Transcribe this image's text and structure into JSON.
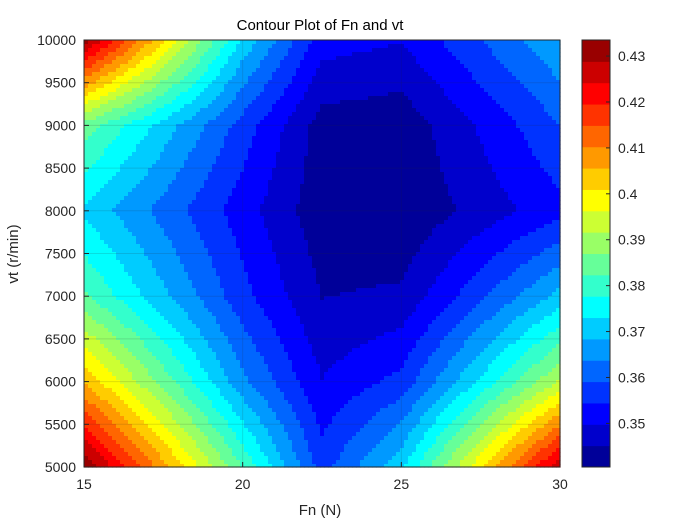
{
  "chart_data": {
    "type": "contour",
    "title": "Contour Plot of Fn and vt",
    "xlabel": "Fn (N)",
    "ylabel": "vt (r/min)",
    "xlim": [
      15,
      30
    ],
    "ylim": [
      5000,
      10000
    ],
    "xticks": [
      15,
      20,
      25,
      30
    ],
    "yticks": [
      5000,
      5500,
      6000,
      6500,
      7000,
      7500,
      8000,
      8500,
      9000,
      9500,
      10000
    ],
    "grid": true,
    "colormap": "jet",
    "colorbar": {
      "location": "right",
      "range": [
        0.3405,
        0.4335
      ],
      "ticks": [
        0.35,
        0.36,
        0.37,
        0.38,
        0.39,
        0.4,
        0.41,
        0.42,
        0.43
      ]
    },
    "levels": 20,
    "z_samples": {
      "x": [
        15,
        20,
        22.5,
        25,
        30
      ],
      "y": [
        5000,
        6000,
        7000,
        8000,
        9000,
        10000
      ],
      "z": [
        [
          0.433,
          0.382,
          0.357,
          0.372,
          0.428
        ],
        [
          0.405,
          0.365,
          0.35,
          0.356,
          0.392
        ],
        [
          0.383,
          0.356,
          0.345,
          0.346,
          0.37
        ],
        [
          0.372,
          0.352,
          0.342,
          0.341,
          0.353
        ],
        [
          0.385,
          0.357,
          0.343,
          0.342,
          0.359
        ],
        [
          0.431,
          0.372,
          0.352,
          0.35,
          0.368
        ]
      ]
    }
  }
}
